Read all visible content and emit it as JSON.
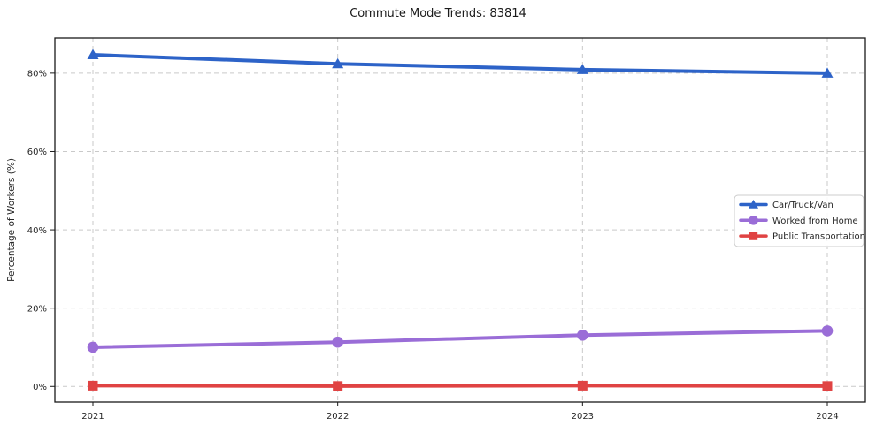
{
  "chart_data": {
    "type": "line",
    "title": "Commute Mode Trends: 83814",
    "xlabel": "",
    "ylabel": "Percentage of Workers (%)",
    "x": [
      2021,
      2022,
      2023,
      2024
    ],
    "x_tick_labels": [
      "2021",
      "2022",
      "2023",
      "2024"
    ],
    "y_ticks": [
      0,
      20,
      40,
      60,
      80
    ],
    "y_tick_suffix": "%",
    "ylim": [
      -4,
      89
    ],
    "grid": true,
    "grid_style": "dashed",
    "legend_position": "center-right",
    "series": [
      {
        "name": "Car/Truck/Van",
        "marker": "triangle",
        "color": "#2d63c8",
        "values": [
          84.7,
          82.4,
          80.9,
          80.0
        ]
      },
      {
        "name": "Worked from Home",
        "marker": "circle",
        "color": "#9a6dd7",
        "values": [
          10.0,
          11.3,
          13.1,
          14.2
        ]
      },
      {
        "name": "Public Transportation",
        "marker": "square",
        "color": "#e04343",
        "values": [
          0.2,
          0.1,
          0.2,
          0.1
        ]
      }
    ],
    "colors": {
      "background": "#ffffff",
      "grid": "#c9c9c9",
      "spine": "#1a1a1a",
      "text": "#262626",
      "legend_border": "#cccccc",
      "legend_background": "#ffffff"
    }
  }
}
